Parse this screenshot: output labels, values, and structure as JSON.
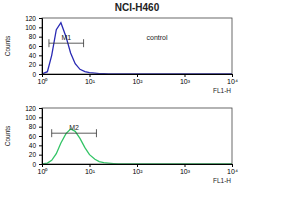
{
  "chart_data": [
    {
      "type": "line",
      "title": "NCI-H460",
      "x_label": "FL1-H",
      "y_label": "Counts",
      "log": "x",
      "grid": false,
      "xlim": [
        1,
        10000
      ],
      "xticks": [
        {
          "value": 1,
          "label": "10⁰"
        },
        {
          "value": 10,
          "label": "10¹"
        },
        {
          "value": 100,
          "label": "10²"
        },
        {
          "value": 1000,
          "label": "10³"
        },
        {
          "value": 10000,
          "label": "10⁴"
        }
      ],
      "ylim": [
        0,
        120
      ],
      "yticks": [
        0,
        20,
        40,
        60,
        80,
        100,
        120
      ],
      "x": [
        1,
        1.3,
        1.6,
        2,
        2.5,
        3.2,
        4,
        5,
        6.3,
        8,
        10,
        13,
        16,
        20,
        25,
        32,
        40,
        100,
        1000,
        10000
      ],
      "series": [
        {
          "color": "#2a2ab4",
          "values": [
            0,
            5,
            40,
            95,
            110,
            80,
            45,
            22,
            10,
            5,
            3,
            2,
            1,
            1,
            0,
            0,
            0,
            0,
            0,
            0
          ]
        }
      ],
      "gate": {
        "label": "M1",
        "x": [
          1.4,
          7.5
        ]
      },
      "annotations": [
        "control"
      ]
    },
    {
      "type": "line",
      "x_label": "FL1-H",
      "y_label": "Counts",
      "log": "x",
      "grid": false,
      "xlim": [
        1,
        10000
      ],
      "xticks": [
        {
          "value": 1,
          "label": "10⁰"
        },
        {
          "value": 10,
          "label": "10¹"
        },
        {
          "value": 100,
          "label": "10²"
        },
        {
          "value": 1000,
          "label": "10³"
        },
        {
          "value": 10000,
          "label": "10⁴"
        }
      ],
      "ylim": [
        0,
        120
      ],
      "yticks": [
        0,
        20,
        40,
        60,
        80,
        100,
        120
      ],
      "x": [
        1,
        1.3,
        1.6,
        2,
        2.5,
        3.2,
        4,
        5,
        6.3,
        8,
        10,
        13,
        16,
        20,
        25,
        32,
        40,
        100,
        1000,
        10000
      ],
      "series": [
        {
          "color": "#33c466",
          "values": [
            0,
            2,
            8,
            22,
            45,
            65,
            75,
            70,
            55,
            35,
            20,
            10,
            5,
            3,
            2,
            1,
            0,
            0,
            0,
            0
          ]
        }
      ],
      "gate": {
        "label": "M2",
        "x": [
          1.6,
          14
        ]
      }
    }
  ]
}
